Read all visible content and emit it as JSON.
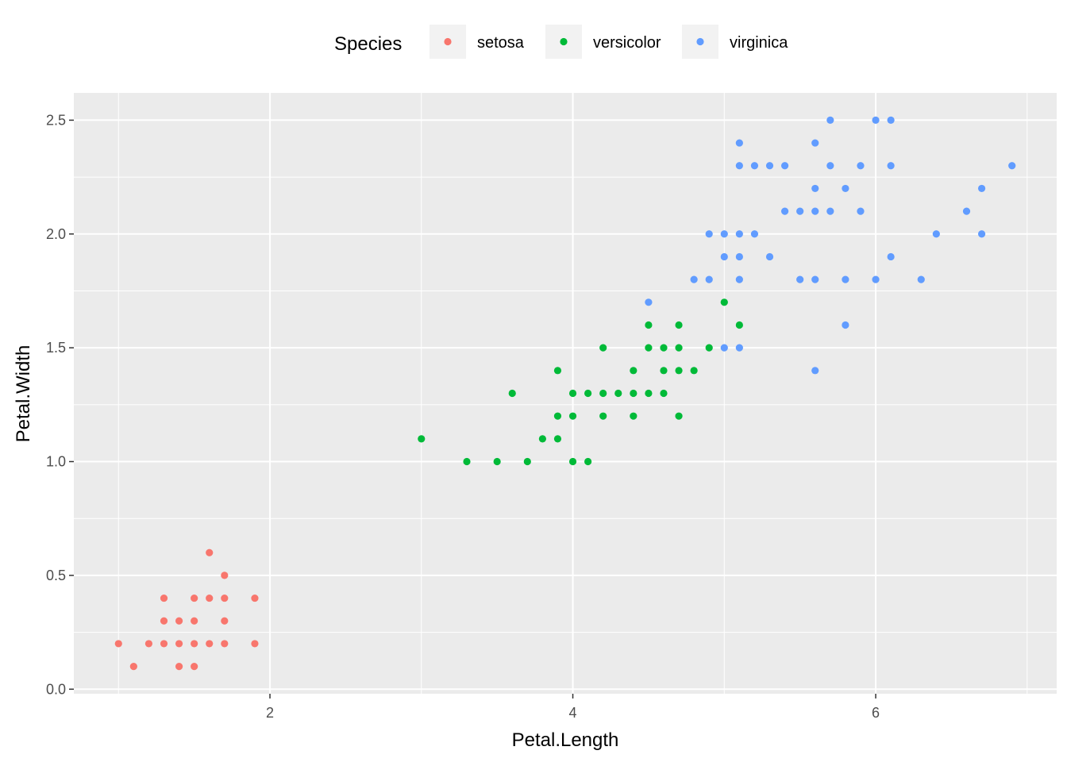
{
  "chart_data": {
    "type": "scatter",
    "xlabel": "Petal.Length",
    "ylabel": "Petal.Width",
    "xlim": [
      0.705,
      7.195
    ],
    "ylim": [
      -0.02,
      2.62
    ],
    "x_ticks": [
      2,
      4,
      6
    ],
    "y_ticks": [
      0.0,
      0.5,
      1.0,
      1.5,
      2.0,
      2.5
    ],
    "x_tick_labels": [
      "2",
      "4",
      "6"
    ],
    "y_tick_labels": [
      "0.0",
      "0.5",
      "1.0",
      "1.5",
      "2.0",
      "2.5"
    ],
    "grid": true,
    "legend": {
      "title": "Species",
      "position": "top"
    },
    "series": [
      {
        "name": "setosa",
        "color": "#F8766D",
        "points": [
          [
            1.0,
            0.2
          ],
          [
            1.1,
            0.1
          ],
          [
            1.2,
            0.2
          ],
          [
            1.3,
            0.2
          ],
          [
            1.3,
            0.3
          ],
          [
            1.3,
            0.4
          ],
          [
            1.4,
            0.1
          ],
          [
            1.4,
            0.2
          ],
          [
            1.4,
            0.3
          ],
          [
            1.5,
            0.1
          ],
          [
            1.5,
            0.2
          ],
          [
            1.5,
            0.3
          ],
          [
            1.5,
            0.4
          ],
          [
            1.6,
            0.2
          ],
          [
            1.6,
            0.4
          ],
          [
            1.6,
            0.6
          ],
          [
            1.7,
            0.2
          ],
          [
            1.7,
            0.3
          ],
          [
            1.7,
            0.4
          ],
          [
            1.7,
            0.5
          ],
          [
            1.9,
            0.2
          ],
          [
            1.9,
            0.4
          ]
        ]
      },
      {
        "name": "versicolor",
        "color": "#00BA38",
        "points": [
          [
            3.0,
            1.1
          ],
          [
            3.3,
            1.0
          ],
          [
            3.5,
            1.0
          ],
          [
            3.6,
            1.3
          ],
          [
            3.7,
            1.0
          ],
          [
            3.8,
            1.1
          ],
          [
            3.9,
            1.1
          ],
          [
            3.9,
            1.2
          ],
          [
            3.9,
            1.4
          ],
          [
            4.0,
            1.0
          ],
          [
            4.0,
            1.2
          ],
          [
            4.0,
            1.3
          ],
          [
            4.1,
            1.0
          ],
          [
            4.1,
            1.3
          ],
          [
            4.2,
            1.2
          ],
          [
            4.2,
            1.3
          ],
          [
            4.2,
            1.5
          ],
          [
            4.3,
            1.3
          ],
          [
            4.4,
            1.2
          ],
          [
            4.4,
            1.3
          ],
          [
            4.4,
            1.4
          ],
          [
            4.5,
            1.3
          ],
          [
            4.5,
            1.5
          ],
          [
            4.5,
            1.6
          ],
          [
            4.6,
            1.3
          ],
          [
            4.6,
            1.4
          ],
          [
            4.6,
            1.5
          ],
          [
            4.7,
            1.2
          ],
          [
            4.7,
            1.4
          ],
          [
            4.7,
            1.5
          ],
          [
            4.7,
            1.6
          ],
          [
            4.8,
            1.4
          ],
          [
            4.9,
            1.5
          ],
          [
            5.0,
            1.7
          ],
          [
            5.1,
            1.6
          ]
        ]
      },
      {
        "name": "virginica",
        "color": "#619CFF",
        "points": [
          [
            4.5,
            1.7
          ],
          [
            4.8,
            1.8
          ],
          [
            4.9,
            1.8
          ],
          [
            4.9,
            2.0
          ],
          [
            5.0,
            1.5
          ],
          [
            5.0,
            1.9
          ],
          [
            5.0,
            2.0
          ],
          [
            5.1,
            1.5
          ],
          [
            5.1,
            1.8
          ],
          [
            5.1,
            1.9
          ],
          [
            5.1,
            2.0
          ],
          [
            5.1,
            2.3
          ],
          [
            5.1,
            2.4
          ],
          [
            5.2,
            2.0
          ],
          [
            5.2,
            2.3
          ],
          [
            5.3,
            1.9
          ],
          [
            5.3,
            2.3
          ],
          [
            5.4,
            2.1
          ],
          [
            5.4,
            2.3
          ],
          [
            5.5,
            1.8
          ],
          [
            5.5,
            2.1
          ],
          [
            5.6,
            1.4
          ],
          [
            5.6,
            1.8
          ],
          [
            5.6,
            2.1
          ],
          [
            5.6,
            2.2
          ],
          [
            5.6,
            2.4
          ],
          [
            5.7,
            2.1
          ],
          [
            5.7,
            2.3
          ],
          [
            5.7,
            2.5
          ],
          [
            5.8,
            1.6
          ],
          [
            5.8,
            1.8
          ],
          [
            5.8,
            2.2
          ],
          [
            5.9,
            2.1
          ],
          [
            5.9,
            2.3
          ],
          [
            6.0,
            1.8
          ],
          [
            6.0,
            2.5
          ],
          [
            6.1,
            1.9
          ],
          [
            6.1,
            2.3
          ],
          [
            6.1,
            2.5
          ],
          [
            6.3,
            1.8
          ],
          [
            6.4,
            2.0
          ],
          [
            6.6,
            2.1
          ],
          [
            6.7,
            2.0
          ],
          [
            6.7,
            2.2
          ],
          [
            6.9,
            2.3
          ]
        ]
      }
    ]
  }
}
